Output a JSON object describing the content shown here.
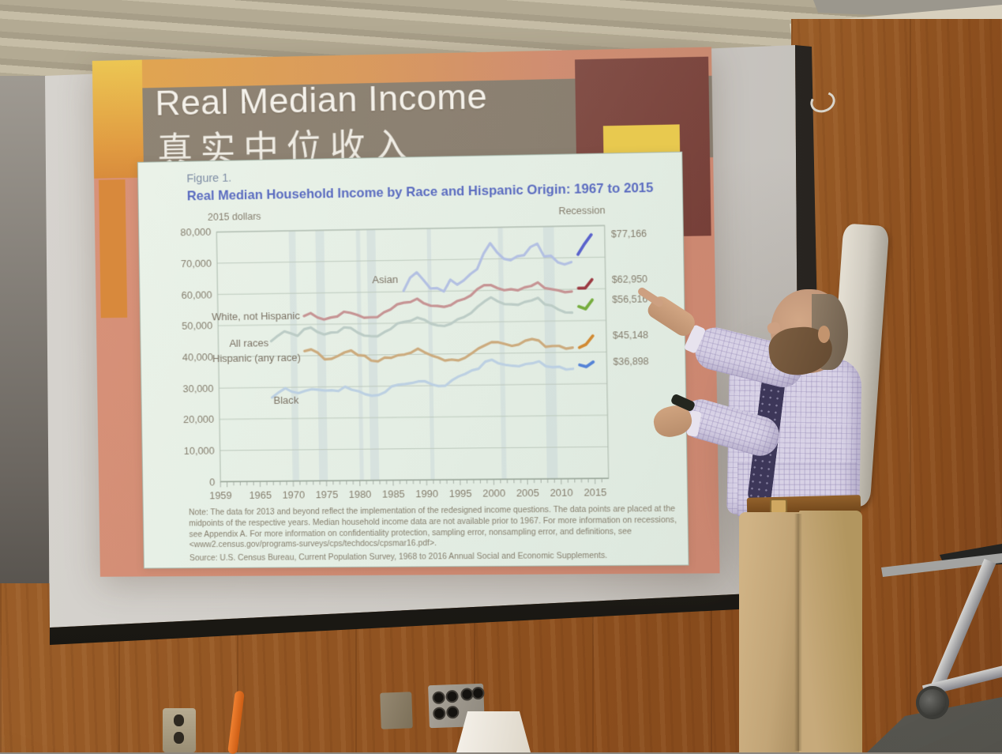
{
  "slide": {
    "title": "Real Median Income",
    "subtitle_zh": "真实中位收入",
    "figure": {
      "label": "Figure 1.",
      "title": "Real Median Household Income by Race and Hispanic Origin: 1967 to 2015",
      "unit_label": "2015 dollars",
      "recession_label": "Recession",
      "note": "Note: The data for 2013 and beyond reflect the implementation of the redesigned income questions. The data points are placed at the midpoints of the respective years. Median household income data are not available prior to 1967. For more information on recessions, see Appendix A. For more information on confidentiality protection, sampling error, nonsampling error, and definitions, see <www2.census.gov/programs-surveys/cps/techdocs/cpsmar16.pdf>.",
      "source": "Source: U.S. Census Bureau, Current Population Survey, 1968 to 2016 Annual Social and Economic Supplements."
    }
  },
  "chart_data": {
    "type": "line",
    "title": "Real Median Household Income by Race and Hispanic Origin: 1967 to 2015",
    "xlabel": "",
    "ylabel": "2015 dollars",
    "xlim": [
      1959,
      2017
    ],
    "ylim": [
      0,
      80000
    ],
    "yticks": [
      0,
      10000,
      20000,
      30000,
      40000,
      50000,
      60000,
      70000,
      80000
    ],
    "ytick_labels": [
      "0",
      "10,000",
      "20,000",
      "30,000",
      "40,000",
      "50,000",
      "60,000",
      "70,000",
      "80,000"
    ],
    "xticks": [
      1959,
      1965,
      1970,
      1975,
      1980,
      1985,
      1990,
      1995,
      2000,
      2005,
      2010,
      2015
    ],
    "grid": true,
    "legend_note": "Recession",
    "recessions": [
      [
        1969.9,
        1970.9
      ],
      [
        1973.9,
        1975.2
      ],
      [
        1980.0,
        1980.6
      ],
      [
        1981.6,
        1982.9
      ],
      [
        1990.6,
        1991.2
      ],
      [
        2001.2,
        2001.9
      ],
      [
        2007.9,
        2009.5
      ]
    ],
    "series": [
      {
        "name": "Asian",
        "color": "#b3c0e2",
        "color_recent": "#5a63cc",
        "end_label": "$77,166",
        "end_value": 77166,
        "label_x": 1986.2,
        "label_y": 63800,
        "points": [
          [
            1987,
            60300
          ],
          [
            1988,
            64400
          ],
          [
            1989,
            66100
          ],
          [
            1990,
            63600
          ],
          [
            1991,
            60900
          ],
          [
            1992,
            61000
          ],
          [
            1993,
            59900
          ],
          [
            1994,
            63600
          ],
          [
            1995,
            62000
          ],
          [
            1996,
            63300
          ],
          [
            1997,
            65300
          ],
          [
            1998,
            66800
          ],
          [
            1999,
            71700
          ],
          [
            2000,
            75000
          ],
          [
            2001,
            72100
          ],
          [
            2002,
            70000
          ],
          [
            2003,
            69500
          ],
          [
            2004,
            70700
          ],
          [
            2005,
            71000
          ],
          [
            2006,
            73600
          ],
          [
            2007,
            74600
          ],
          [
            2008,
            70500
          ],
          [
            2009,
            70700
          ],
          [
            2010,
            68600
          ],
          [
            2011,
            67900
          ],
          [
            2012,
            68600
          ]
        ],
        "points_recent": [
          [
            2013,
            71000
          ],
          [
            2014,
            74300
          ],
          [
            2015,
            77166
          ]
        ]
      },
      {
        "name": "White, not Hispanic",
        "color": "#c69494",
        "color_recent": "#9c3a42",
        "end_label": "$62,950",
        "end_value": 62950,
        "label_x": 1971.4,
        "label_y": 52800,
        "points": [
          [
            1972,
            52700
          ],
          [
            1973,
            53600
          ],
          [
            1974,
            52200
          ],
          [
            1975,
            51500
          ],
          [
            1976,
            52100
          ],
          [
            1977,
            52400
          ],
          [
            1978,
            53900
          ],
          [
            1979,
            53500
          ],
          [
            1980,
            52800
          ],
          [
            1981,
            51900
          ],
          [
            1982,
            52000
          ],
          [
            1983,
            52000
          ],
          [
            1984,
            53500
          ],
          [
            1985,
            54400
          ],
          [
            1986,
            56000
          ],
          [
            1987,
            56500
          ],
          [
            1988,
            56700
          ],
          [
            1989,
            57700
          ],
          [
            1990,
            56200
          ],
          [
            1991,
            55400
          ],
          [
            1992,
            55300
          ],
          [
            1993,
            55000
          ],
          [
            1994,
            55500
          ],
          [
            1995,
            56800
          ],
          [
            1996,
            57400
          ],
          [
            1997,
            58500
          ],
          [
            1998,
            60500
          ],
          [
            1999,
            61700
          ],
          [
            2000,
            61700
          ],
          [
            2001,
            60700
          ],
          [
            2002,
            60000
          ],
          [
            2003,
            60300
          ],
          [
            2004,
            59900
          ],
          [
            2005,
            60800
          ],
          [
            2006,
            61200
          ],
          [
            2007,
            62300
          ],
          [
            2008,
            60500
          ],
          [
            2009,
            60100
          ],
          [
            2010,
            59700
          ],
          [
            2011,
            59100
          ],
          [
            2012,
            59300
          ]
        ],
        "points_recent": [
          [
            2013,
            60300
          ],
          [
            2014,
            60300
          ],
          [
            2015,
            62950
          ]
        ]
      },
      {
        "name": "All races",
        "color": "#bcccc6",
        "color_recent": "#76ad3e",
        "end_label": "$56,516",
        "end_value": 56516,
        "label_x": 1966.6,
        "label_y": 44200,
        "points": [
          [
            1967,
            44800
          ],
          [
            1968,
            46500
          ],
          [
            1969,
            47900
          ],
          [
            1970,
            47200
          ],
          [
            1971,
            46400
          ],
          [
            1972,
            48500
          ],
          [
            1973,
            49000
          ],
          [
            1974,
            47500
          ],
          [
            1975,
            46700
          ],
          [
            1976,
            47300
          ],
          [
            1977,
            47400
          ],
          [
            1978,
            48900
          ],
          [
            1979,
            48700
          ],
          [
            1980,
            47200
          ],
          [
            1981,
            46200
          ],
          [
            1982,
            46000
          ],
          [
            1983,
            45900
          ],
          [
            1984,
            47200
          ],
          [
            1985,
            48200
          ],
          [
            1986,
            49900
          ],
          [
            1987,
            50400
          ],
          [
            1988,
            50700
          ],
          [
            1989,
            51700
          ],
          [
            1990,
            51000
          ],
          [
            1991,
            49700
          ],
          [
            1992,
            49100
          ],
          [
            1993,
            48900
          ],
          [
            1994,
            49600
          ],
          [
            1995,
            51000
          ],
          [
            1996,
            51700
          ],
          [
            1997,
            52900
          ],
          [
            1998,
            54900
          ],
          [
            1999,
            56500
          ],
          [
            2000,
            57800
          ],
          [
            2001,
            56500
          ],
          [
            2002,
            55600
          ],
          [
            2003,
            55500
          ],
          [
            2004,
            55300
          ],
          [
            2005,
            56200
          ],
          [
            2006,
            56600
          ],
          [
            2007,
            57400
          ],
          [
            2008,
            55300
          ],
          [
            2009,
            54900
          ],
          [
            2010,
            53600
          ],
          [
            2011,
            52700
          ],
          [
            2012,
            52600
          ]
        ],
        "points_recent": [
          [
            2013,
            54500
          ],
          [
            2014,
            53700
          ],
          [
            2015,
            56516
          ]
        ]
      },
      {
        "name": "Hispanic (any race)",
        "color": "#ccab7e",
        "color_recent": "#d18a33",
        "end_label": "$45,148",
        "end_value": 45148,
        "label_x": 1971.4,
        "label_y": 39500,
        "points": [
          [
            1972,
            41500
          ],
          [
            1973,
            42000
          ],
          [
            1974,
            40900
          ],
          [
            1975,
            38800
          ],
          [
            1976,
            38900
          ],
          [
            1977,
            39800
          ],
          [
            1978,
            40900
          ],
          [
            1979,
            41500
          ],
          [
            1980,
            40000
          ],
          [
            1981,
            39800
          ],
          [
            1982,
            38200
          ],
          [
            1983,
            37900
          ],
          [
            1984,
            39100
          ],
          [
            1985,
            39000
          ],
          [
            1986,
            39800
          ],
          [
            1987,
            40000
          ],
          [
            1988,
            40600
          ],
          [
            1989,
            41800
          ],
          [
            1990,
            40600
          ],
          [
            1991,
            39600
          ],
          [
            1992,
            38900
          ],
          [
            1993,
            37900
          ],
          [
            1994,
            38200
          ],
          [
            1995,
            37900
          ],
          [
            1996,
            38700
          ],
          [
            1997,
            40100
          ],
          [
            1998,
            41600
          ],
          [
            1999,
            42600
          ],
          [
            2000,
            43600
          ],
          [
            2001,
            43500
          ],
          [
            2002,
            42900
          ],
          [
            2003,
            42300
          ],
          [
            2004,
            42700
          ],
          [
            2005,
            43900
          ],
          [
            2006,
            44400
          ],
          [
            2007,
            43900
          ],
          [
            2008,
            41900
          ],
          [
            2009,
            42100
          ],
          [
            2010,
            42100
          ],
          [
            2011,
            41200
          ],
          [
            2012,
            41500
          ]
        ],
        "points_recent": [
          [
            2013,
            41500
          ],
          [
            2014,
            42500
          ],
          [
            2015,
            45148
          ]
        ]
      },
      {
        "name": "Black",
        "color": "#bcd0e2",
        "color_recent": "#5583d6",
        "end_label": "$36,898",
        "end_value": 36898,
        "label_x": 1971.0,
        "label_y": 25800,
        "points": [
          [
            1967,
            26800
          ],
          [
            1968,
            28400
          ],
          [
            1969,
            29700
          ],
          [
            1970,
            28600
          ],
          [
            1971,
            28100
          ],
          [
            1972,
            28800
          ],
          [
            1973,
            29300
          ],
          [
            1974,
            29100
          ],
          [
            1975,
            28800
          ],
          [
            1976,
            28900
          ],
          [
            1977,
            28600
          ],
          [
            1978,
            30000
          ],
          [
            1979,
            29000
          ],
          [
            1980,
            28500
          ],
          [
            1981,
            27500
          ],
          [
            1982,
            27000
          ],
          [
            1983,
            27200
          ],
          [
            1984,
            28100
          ],
          [
            1985,
            29900
          ],
          [
            1986,
            30400
          ],
          [
            1987,
            30600
          ],
          [
            1988,
            30900
          ],
          [
            1989,
            31400
          ],
          [
            1990,
            31400
          ],
          [
            1991,
            30400
          ],
          [
            1992,
            29800
          ],
          [
            1993,
            29900
          ],
          [
            1994,
            31600
          ],
          [
            1995,
            32800
          ],
          [
            1996,
            33600
          ],
          [
            1997,
            34700
          ],
          [
            1998,
            35200
          ],
          [
            1999,
            37400
          ],
          [
            2000,
            38000
          ],
          [
            2001,
            36800
          ],
          [
            2002,
            36300
          ],
          [
            2003,
            36000
          ],
          [
            2004,
            35800
          ],
          [
            2005,
            36500
          ],
          [
            2006,
            36700
          ],
          [
            2007,
            37300
          ],
          [
            2008,
            35700
          ],
          [
            2009,
            35400
          ],
          [
            2010,
            35500
          ],
          [
            2011,
            34600
          ],
          [
            2012,
            34800
          ]
        ],
        "points_recent": [
          [
            2013,
            36000
          ],
          [
            2014,
            35400
          ],
          [
            2015,
            36898
          ]
        ]
      }
    ]
  },
  "colors": {
    "slide_bg": "#d28a74",
    "slide_accent_yellow": "#e8c94f",
    "slide_accent_maroon": "#7e463e",
    "slide_accent_orange": "#d8893c",
    "chart_panel": "#e7efe5",
    "chart_title": "#5b6cc0",
    "grid": "#bdc9bd",
    "tick_text": "#867f6f",
    "recession_band": "#a9bccb"
  }
}
